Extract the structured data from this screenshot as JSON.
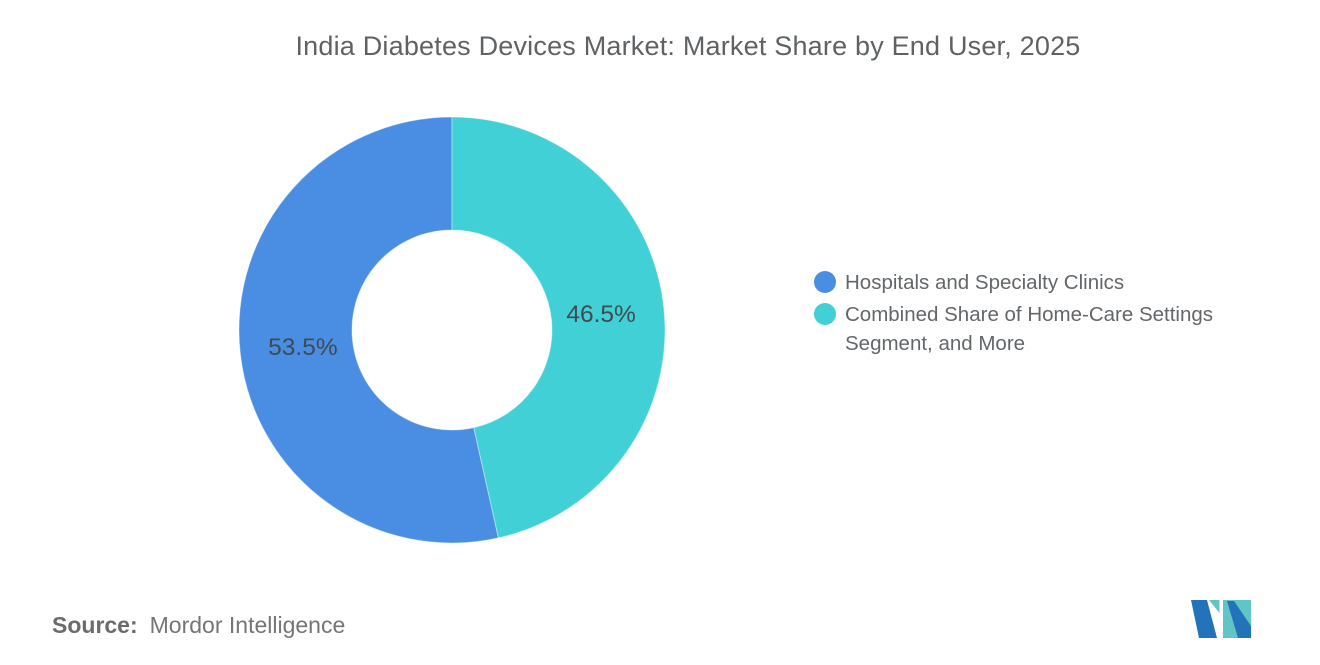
{
  "chart_data": {
    "type": "pie",
    "subtype": "donut",
    "title": "India Diabetes Devices Market: Market Share by End User, 2025",
    "unit": "%",
    "legend_position": "right",
    "start_position": "top",
    "first_slice_direction": "counterclockwise",
    "inner_radius_ratio": 0.47,
    "value_label_color": "#414A51",
    "slices": [
      {
        "label": "Hospitals and Specialty Clinics",
        "value": 53.5,
        "display": "53.5%",
        "color": "#4A8EE3"
      },
      {
        "label": "Combined Share of Home-Care Settings Segment, and More",
        "value": 46.5,
        "display": "46.5%",
        "color": "#40D0D6"
      }
    ]
  },
  "source": {
    "label": "Source:",
    "value": "Mordor Intelligence"
  },
  "logo": {
    "name": "mordor-intelligence-logo-mark",
    "blue": "#2273B9",
    "teal": "#60C5C4"
  }
}
